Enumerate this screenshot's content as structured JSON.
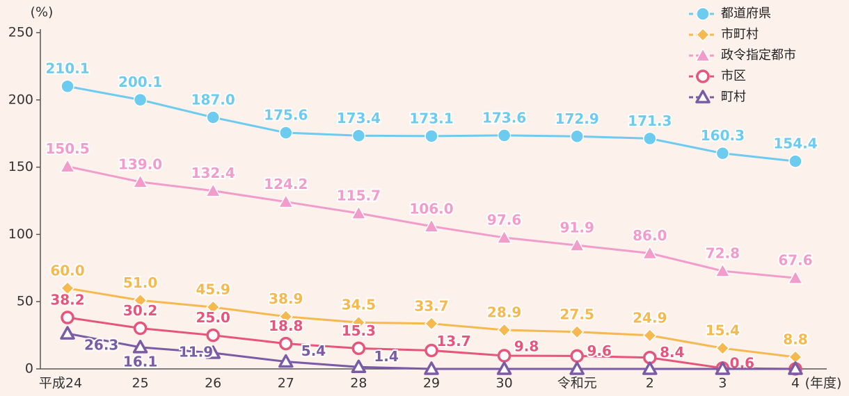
{
  "chart_data": {
    "type": "line",
    "y_unit": "(%)",
    "x_unit": "(年度)",
    "categories": [
      "平成24",
      "25",
      "26",
      "27",
      "28",
      "29",
      "30",
      "令和元",
      "2",
      "3",
      "4"
    ],
    "ylim": [
      0,
      250
    ],
    "yticks": [
      0,
      50,
      100,
      150,
      200,
      250
    ],
    "legend": "top-right",
    "series": [
      {
        "name": "都道府県",
        "color": "#6ccbef",
        "marker": "circle",
        "values": [
          210.1,
          200.1,
          187.0,
          175.6,
          173.4,
          173.1,
          173.6,
          172.9,
          171.3,
          160.3,
          154.4
        ],
        "value_labels": [
          "210.1",
          "200.1",
          "187.0",
          "175.6",
          "173.4",
          "173.1",
          "173.6",
          "172.9",
          "171.3",
          "160.3",
          "154.4"
        ]
      },
      {
        "name": "市町村",
        "color": "#f6b94f",
        "marker": "diamond",
        "values": [
          60.0,
          51.0,
          45.9,
          38.9,
          34.5,
          33.7,
          28.9,
          27.5,
          24.9,
          15.4,
          8.8
        ],
        "value_labels": [
          "60.0",
          "51.0",
          "45.9",
          "38.9",
          "34.5",
          "33.7",
          "28.9",
          "27.5",
          "24.9",
          "15.4",
          "8.8"
        ]
      },
      {
        "name": "政令指定都市",
        "color": "#f19ccb",
        "marker": "triangle",
        "values": [
          150.5,
          139.0,
          132.4,
          124.2,
          115.7,
          106.0,
          97.6,
          91.9,
          86.0,
          72.8,
          67.6
        ],
        "value_labels": [
          "150.5",
          "139.0",
          "132.4",
          "124.2",
          "115.7",
          "106.0",
          "97.6",
          "91.9",
          "86.0",
          "72.8",
          "67.6"
        ]
      },
      {
        "name": "市区",
        "color": "#e6557b",
        "marker": "open-circle",
        "values": [
          38.2,
          30.2,
          25.0,
          18.8,
          15.3,
          13.7,
          9.8,
          9.6,
          8.4,
          0.6,
          0
        ],
        "value_labels": [
          "38.2",
          "30.2",
          "25.0",
          "18.8",
          "15.3",
          "13.7",
          "9.8",
          "9.6",
          "8.4",
          "0.6",
          null
        ]
      },
      {
        "name": "町村",
        "color": "#7b5aa6",
        "marker": "open-triangle",
        "values": [
          26.3,
          16.1,
          11.9,
          5.4,
          1.4,
          0,
          0,
          0,
          0,
          0,
          0
        ],
        "value_labels": [
          "26.3",
          "16.1",
          "11.9",
          "5.4",
          "1.4",
          null,
          null,
          null,
          null,
          null,
          null
        ]
      }
    ]
  }
}
